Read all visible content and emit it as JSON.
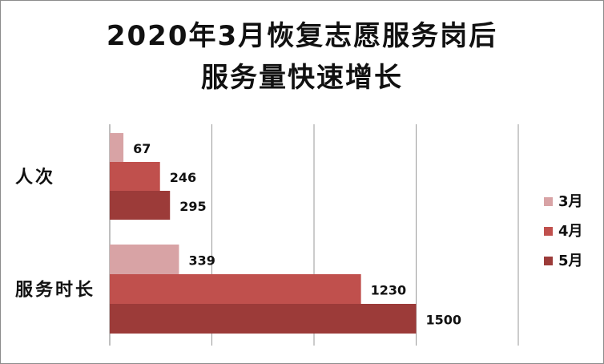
{
  "chart_data": {
    "type": "bar",
    "orientation": "horizontal",
    "title_lines": [
      "2020年3月恢复志愿服务岗后",
      "服务量快速增长"
    ],
    "categories": [
      "人次",
      "服务时长"
    ],
    "series": [
      {
        "name": "3月",
        "color": "#d8a3a5",
        "values": [
          67,
          339
        ]
      },
      {
        "name": "4月",
        "color": "#c0504d",
        "values": [
          246,
          1230
        ]
      },
      {
        "name": "5月",
        "color": "#9c3b39",
        "values": [
          295,
          1500
        ]
      }
    ],
    "xlim": [
      0,
      2000
    ],
    "grid": true,
    "legend": "right"
  }
}
